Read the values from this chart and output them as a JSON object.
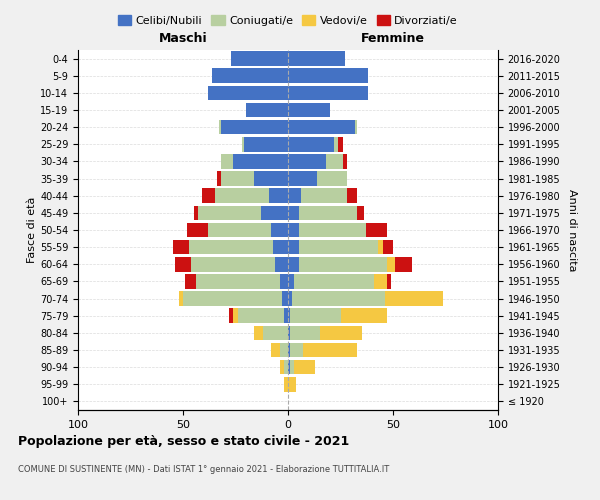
{
  "age_groups": [
    "100+",
    "95-99",
    "90-94",
    "85-89",
    "80-84",
    "75-79",
    "70-74",
    "65-69",
    "60-64",
    "55-59",
    "50-54",
    "45-49",
    "40-44",
    "35-39",
    "30-34",
    "25-29",
    "20-24",
    "15-19",
    "10-14",
    "5-9",
    "0-4"
  ],
  "birth_years": [
    "≤ 1920",
    "1921-1925",
    "1926-1930",
    "1931-1935",
    "1936-1940",
    "1941-1945",
    "1946-1950",
    "1951-1955",
    "1956-1960",
    "1961-1965",
    "1966-1970",
    "1971-1975",
    "1976-1980",
    "1981-1985",
    "1986-1990",
    "1991-1995",
    "1996-2000",
    "2001-2005",
    "2006-2010",
    "2011-2015",
    "2016-2020"
  ],
  "colors": {
    "celibi": "#4472c4",
    "coniugati": "#b8cfa0",
    "vedovi": "#f5c842",
    "divorziati": "#cc1111"
  },
  "maschi": {
    "celibi": [
      0,
      0,
      0,
      0,
      0,
      2,
      3,
      4,
      6,
      7,
      8,
      13,
      9,
      16,
      26,
      21,
      32,
      20,
      38,
      36,
      27
    ],
    "coniugati": [
      0,
      0,
      2,
      4,
      12,
      22,
      47,
      40,
      40,
      40,
      30,
      30,
      26,
      16,
      6,
      1,
      1,
      0,
      0,
      0,
      0
    ],
    "vedovi": [
      0,
      2,
      2,
      4,
      4,
      2,
      2,
      0,
      0,
      0,
      0,
      0,
      0,
      0,
      0,
      0,
      0,
      0,
      0,
      0,
      0
    ],
    "divorziati": [
      0,
      0,
      0,
      0,
      0,
      2,
      0,
      5,
      8,
      8,
      10,
      2,
      6,
      2,
      0,
      0,
      0,
      0,
      0,
      0,
      0
    ]
  },
  "femmine": {
    "celibi": [
      0,
      0,
      1,
      1,
      1,
      1,
      2,
      3,
      5,
      5,
      5,
      5,
      6,
      14,
      18,
      22,
      32,
      20,
      38,
      38,
      27
    ],
    "coniugati": [
      0,
      0,
      2,
      6,
      14,
      24,
      44,
      38,
      42,
      38,
      32,
      28,
      22,
      14,
      8,
      2,
      1,
      0,
      0,
      0,
      0
    ],
    "vedovi": [
      0,
      4,
      10,
      26,
      20,
      22,
      28,
      6,
      4,
      2,
      0,
      0,
      0,
      0,
      0,
      0,
      0,
      0,
      0,
      0,
      0
    ],
    "divorziati": [
      0,
      0,
      0,
      0,
      0,
      0,
      0,
      2,
      8,
      5,
      10,
      3,
      5,
      0,
      2,
      2,
      0,
      0,
      0,
      0,
      0
    ]
  },
  "title": "Popolazione per età, sesso e stato civile - 2021",
  "subtitle": "COMUNE DI SUSTINENTE (MN) - Dati ISTAT 1° gennaio 2021 - Elaborazione TUTTITALIA.IT",
  "xlabel_left": "Maschi",
  "xlabel_right": "Femmine",
  "ylabel_left": "Fasce di età",
  "ylabel_right": "Anni di nascita",
  "xlim": 100,
  "legend_labels": [
    "Celibi/Nubili",
    "Coniugati/e",
    "Vedovi/e",
    "Divorziati/e"
  ],
  "bg_color": "#f0f0f0",
  "plot_bg": "#ffffff"
}
